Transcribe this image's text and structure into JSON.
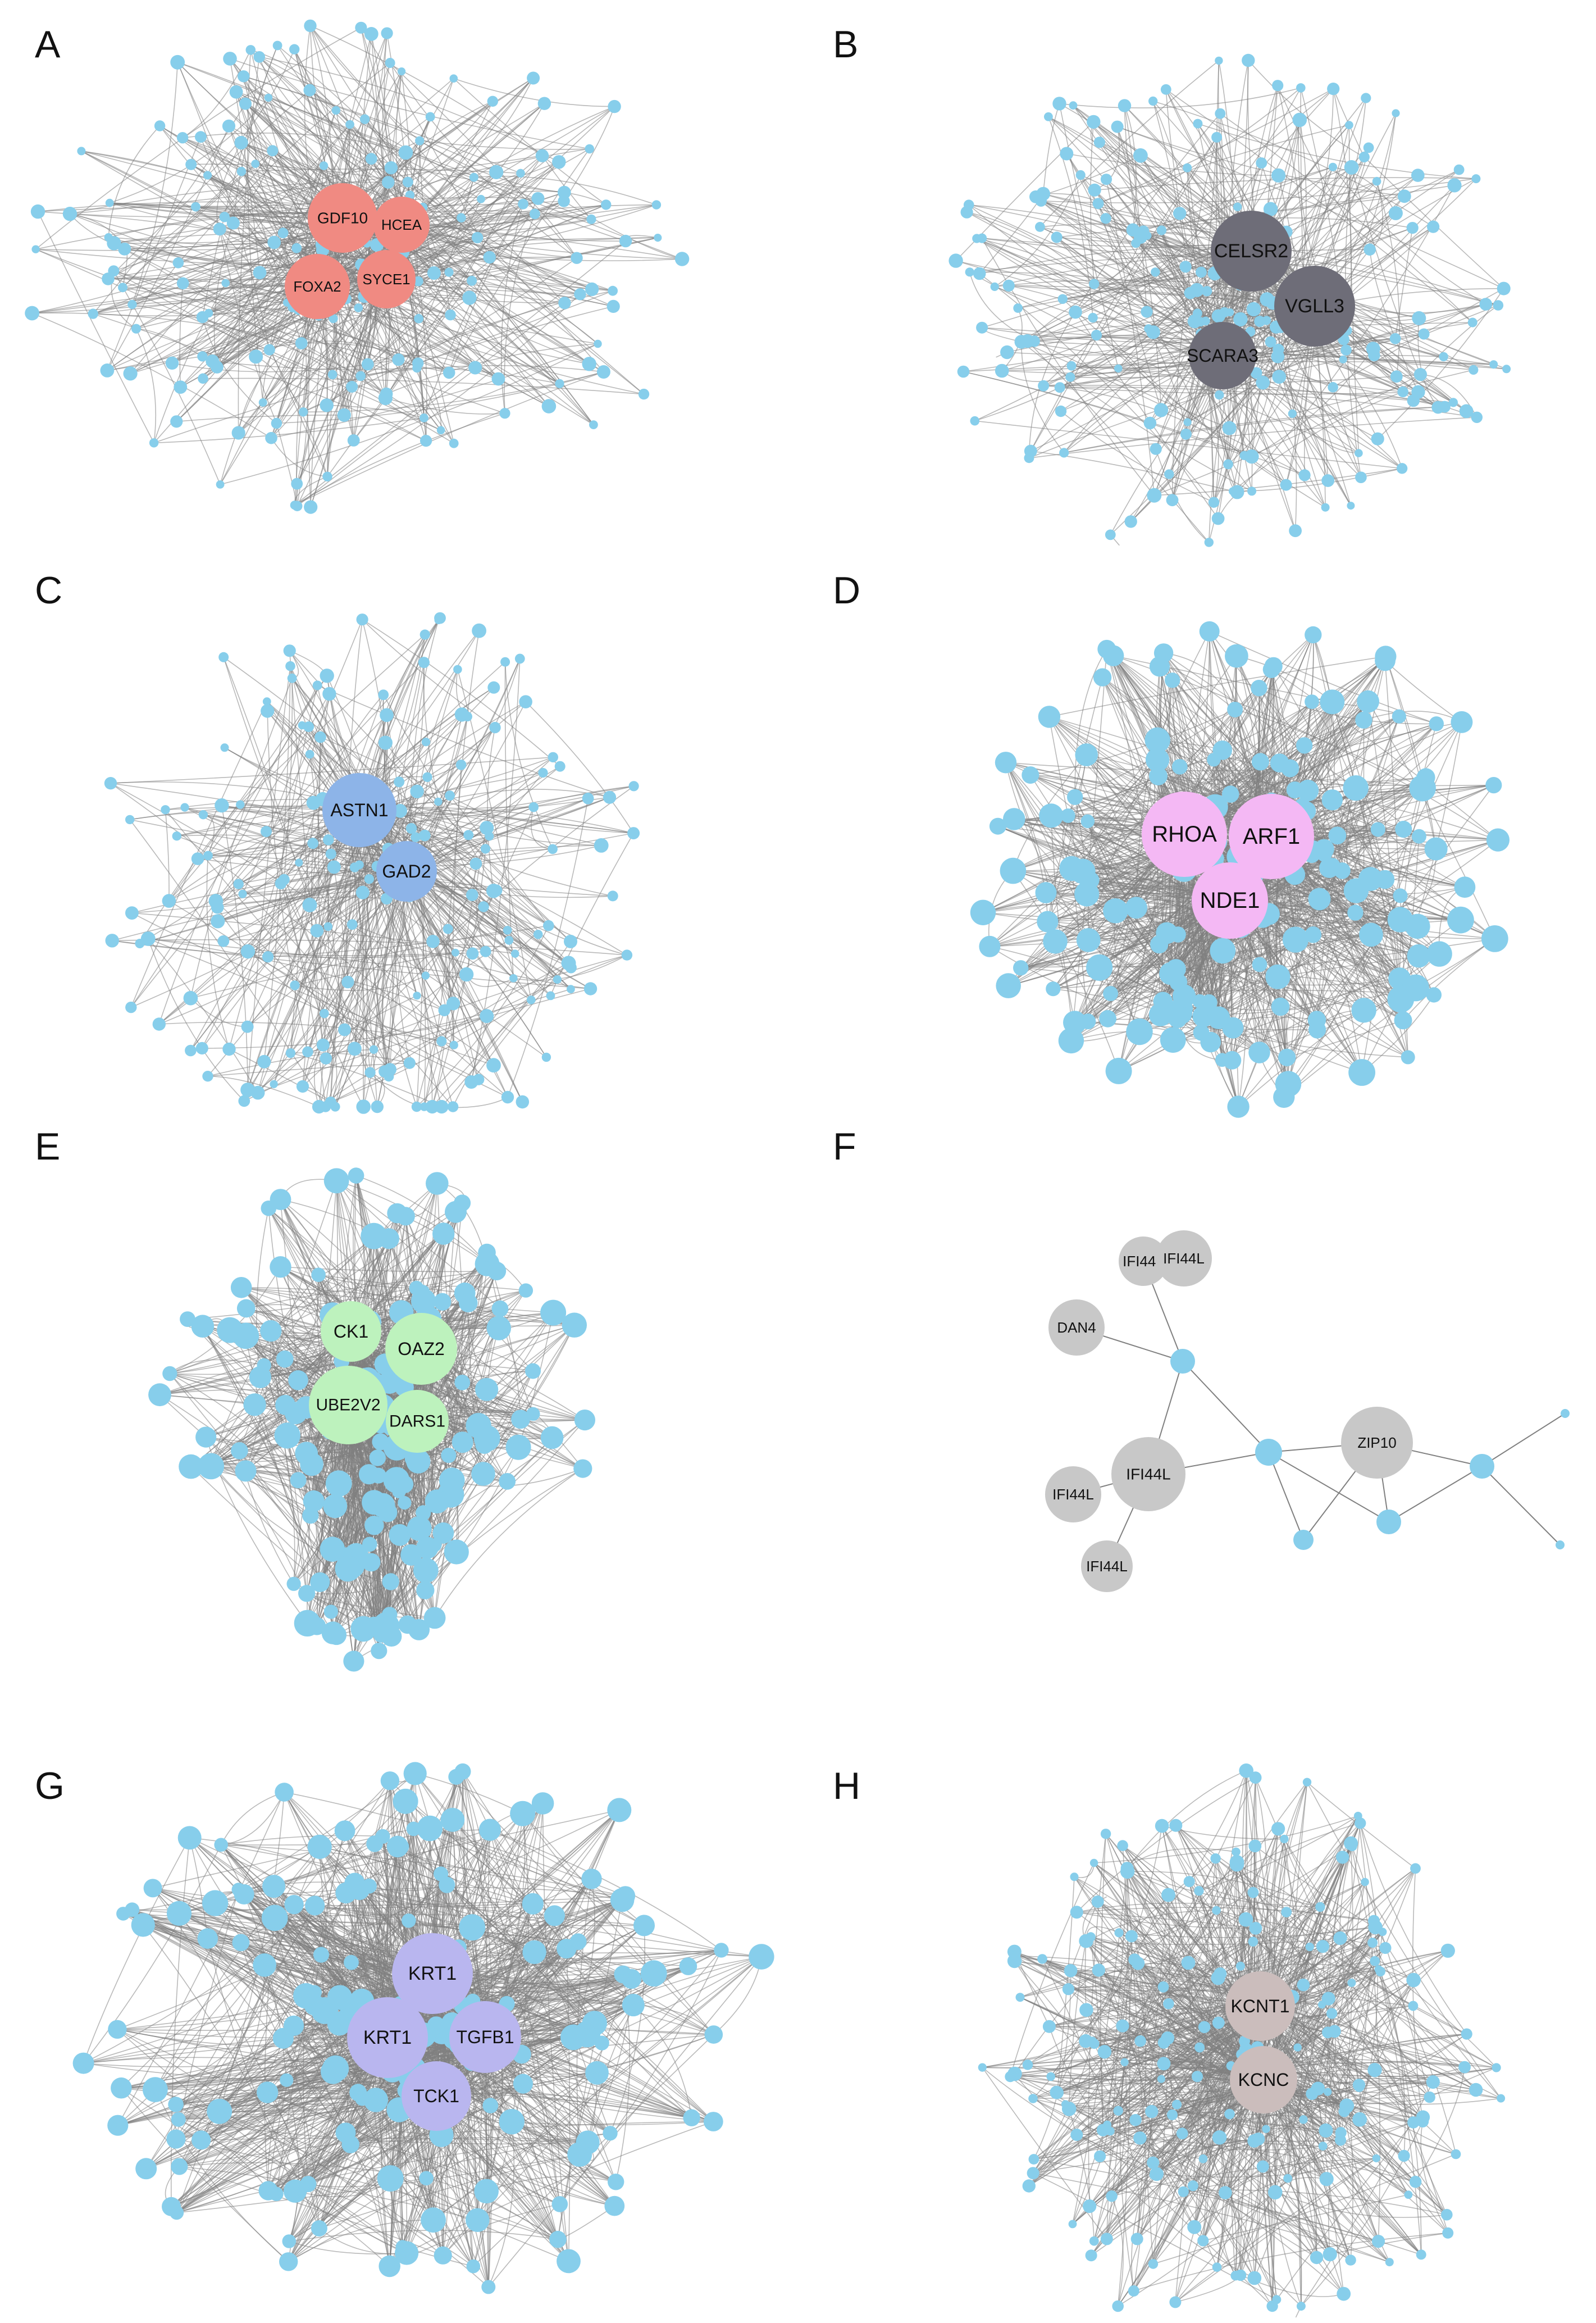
{
  "colors": {
    "node": "#87CEEB",
    "edge": "#808080",
    "panels": {
      "A": "#F08A82",
      "B": "#6E6D78",
      "C": "#8DB4E8",
      "D": "#F4B8F4",
      "E": "#BDF2BD",
      "F": "#C8C8C8",
      "G": "#B9B6EF",
      "H": "#CBBDBC"
    }
  },
  "panels": [
    {
      "letter": "A",
      "hubs": [
        "GDF10",
        "HCEA",
        "FOXA2",
        "SYCE1"
      ]
    },
    {
      "letter": "B",
      "hubs": [
        "CELSR2",
        "VGLL3",
        "SCARA3"
      ]
    },
    {
      "letter": "C",
      "hubs": [
        "ASTN1",
        "GAD2"
      ]
    },
    {
      "letter": "D",
      "hubs": [
        "RHOA",
        "ARF1",
        "NDE1"
      ]
    },
    {
      "letter": "E",
      "hubs": [
        "CK1",
        "OAZ2",
        "UBE2V2",
        "DARS1"
      ]
    },
    {
      "letter": "F",
      "hubs": [
        "IFI44L",
        "IFI44L",
        "DAN4",
        "IFI44L",
        "ZIP10",
        "IFI44L",
        "IFI44L"
      ]
    },
    {
      "letter": "G",
      "hubs": [
        "KRT1",
        "KRT1",
        "TGFB1",
        "TCK1"
      ]
    },
    {
      "letter": "H",
      "hubs": [
        "KCNT1",
        "KCNC"
      ]
    }
  ]
}
